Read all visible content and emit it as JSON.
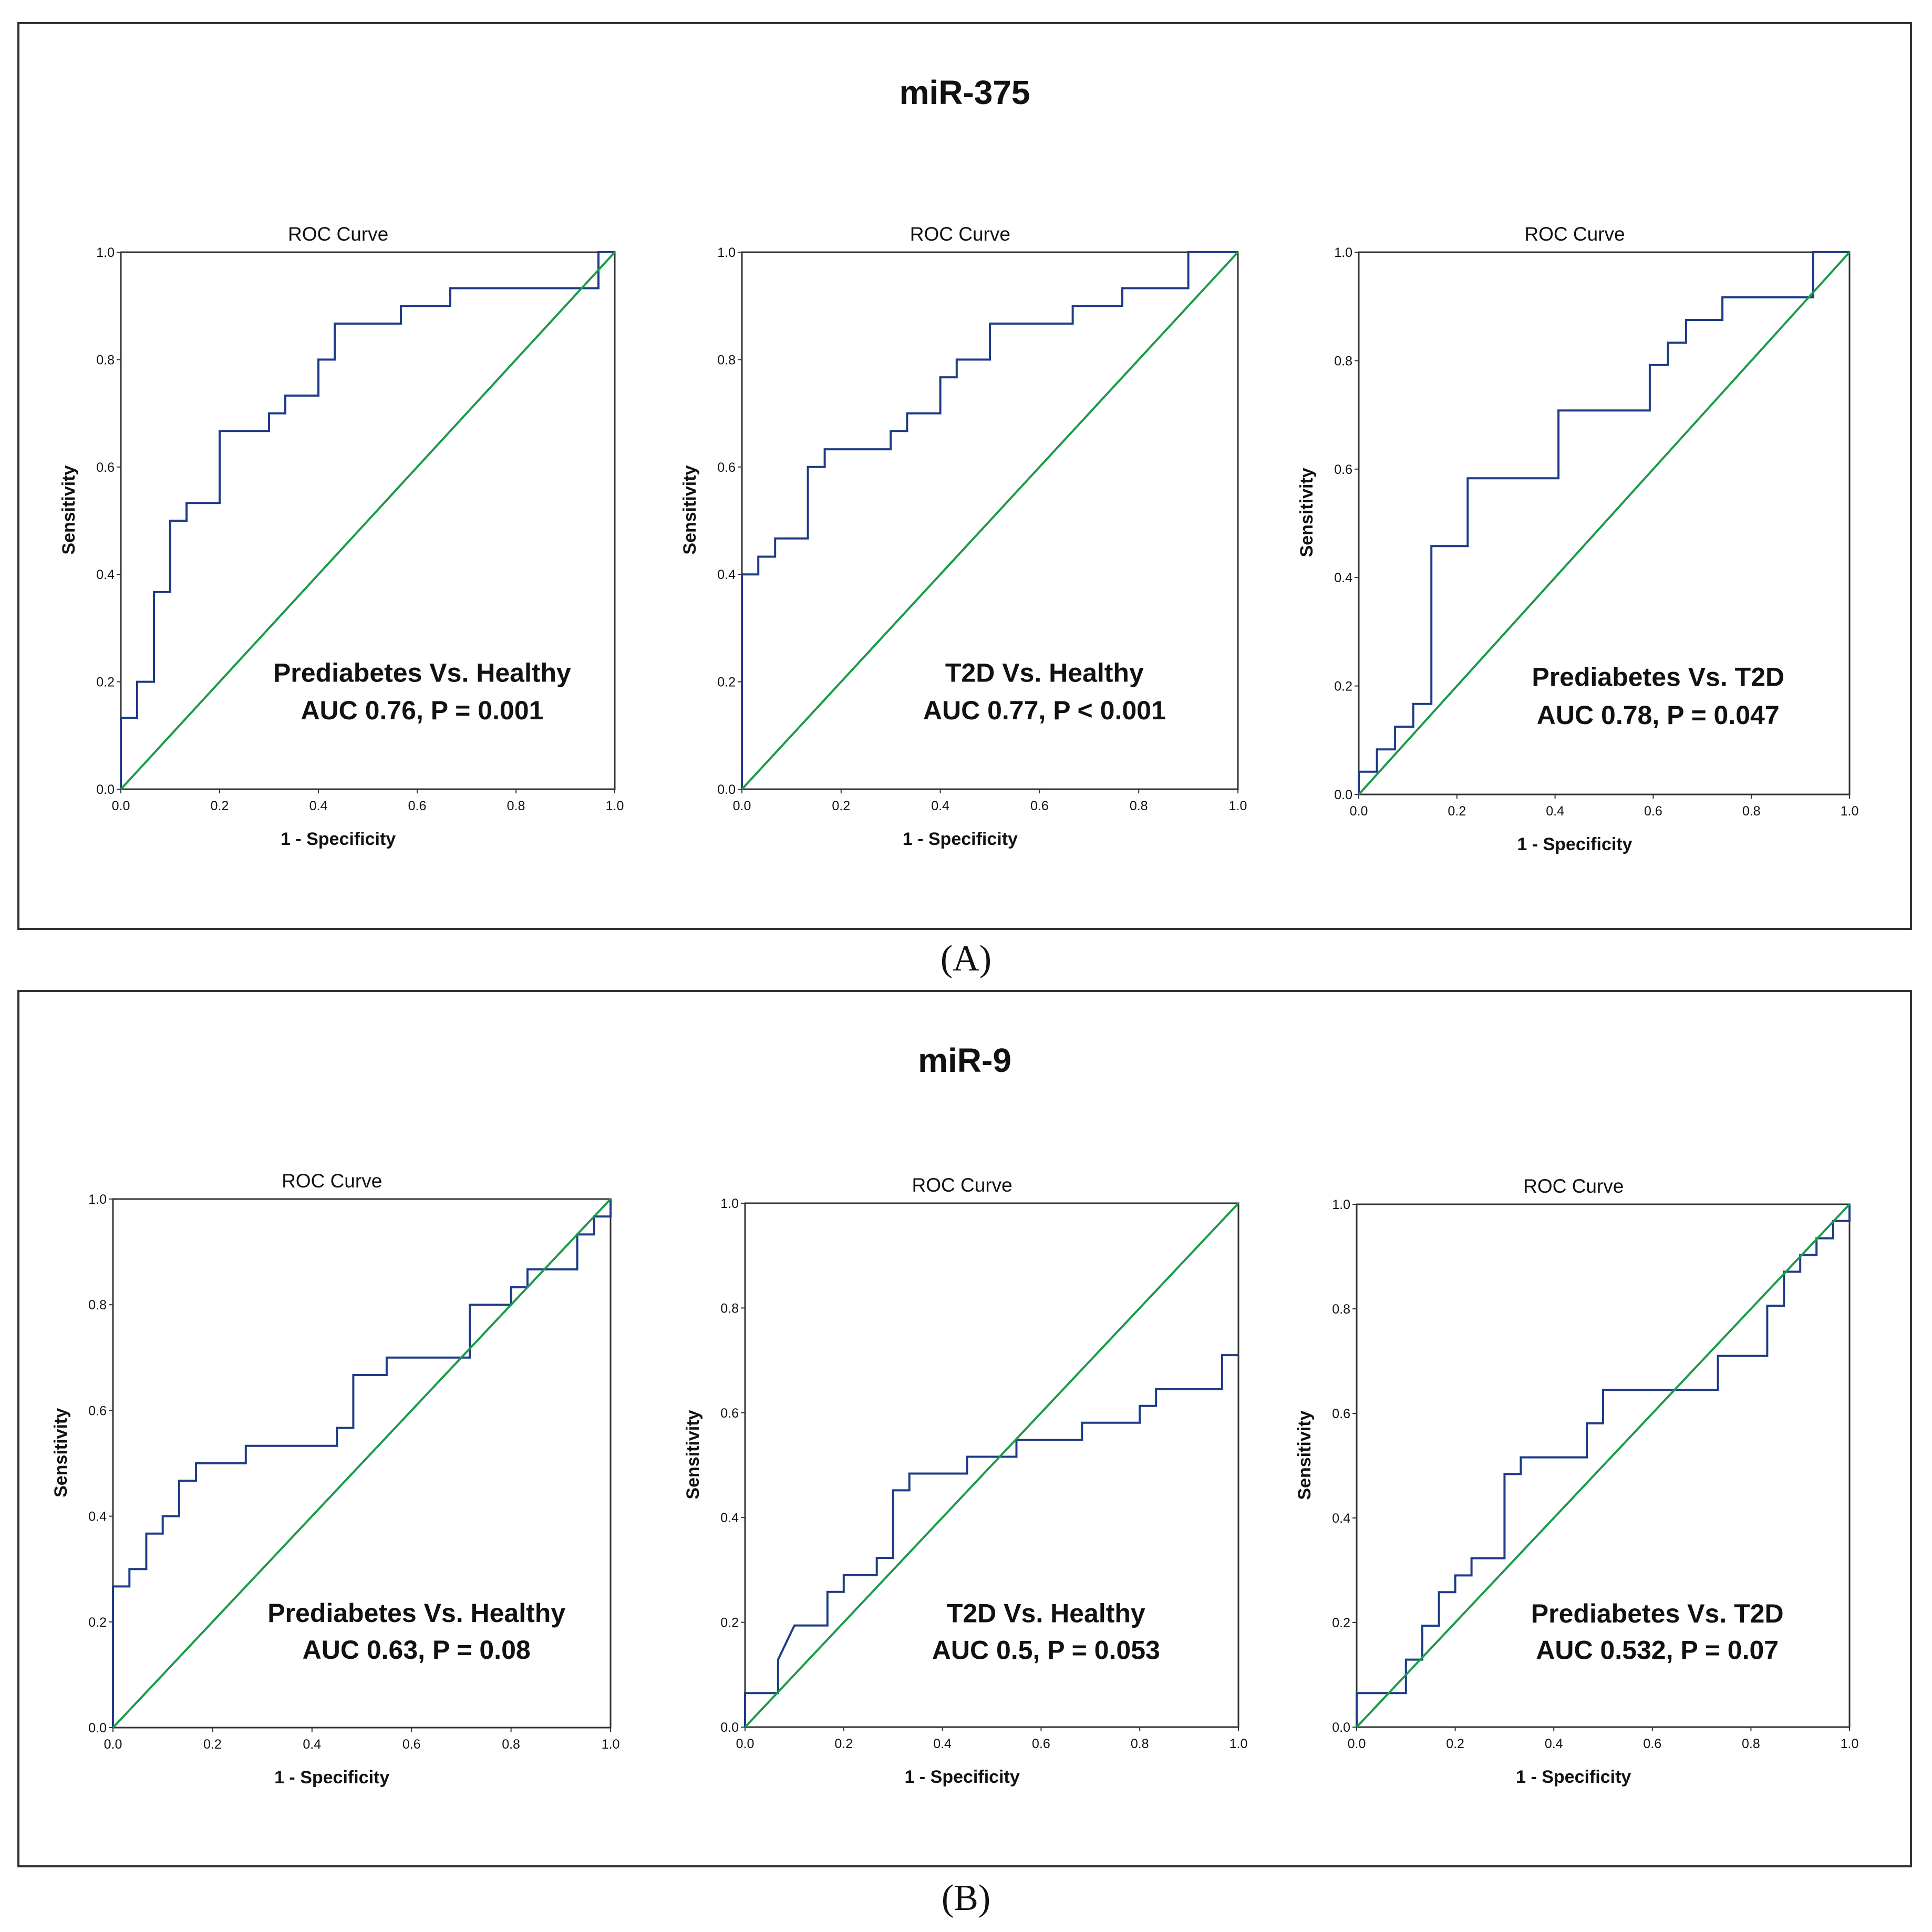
{
  "panels": [
    {
      "id": "A",
      "title": "miR-375",
      "letter": "(A)"
    },
    {
      "id": "B",
      "title": "miR-9",
      "letter": "(B)"
    }
  ],
  "colors": {
    "roc": "#1f3c88",
    "reference": "#1a9a4a",
    "frame": "#333333"
  },
  "chart_data": [
    {
      "type": "line",
      "panel": "A",
      "chart_title": "ROC Curve",
      "xlabel": "1 - Specificity",
      "ylabel": "Sensitivity",
      "xlim": [
        0,
        1
      ],
      "ylim": [
        0,
        1
      ],
      "xticks": [
        "0.0",
        "0.2",
        "0.4",
        "0.6",
        "0.8",
        "1.0"
      ],
      "yticks": [
        "0.0",
        "0.2",
        "0.4",
        "0.6",
        "0.8",
        "1.0"
      ],
      "annotation": [
        "Prediabetes Vs. Healthy",
        "AUC 0.76, P = 0.001"
      ],
      "series": [
        {
          "name": "ROC",
          "points": [
            [
              0,
              0
            ],
            [
              0,
              0.133
            ],
            [
              0.033,
              0.133
            ],
            [
              0.033,
              0.2
            ],
            [
              0.067,
              0.2
            ],
            [
              0.067,
              0.367
            ],
            [
              0.1,
              0.367
            ],
            [
              0.1,
              0.5
            ],
            [
              0.133,
              0.5
            ],
            [
              0.133,
              0.533
            ],
            [
              0.2,
              0.533
            ],
            [
              0.2,
              0.667
            ],
            [
              0.3,
              0.667
            ],
            [
              0.3,
              0.7
            ],
            [
              0.333,
              0.7
            ],
            [
              0.333,
              0.733
            ],
            [
              0.4,
              0.733
            ],
            [
              0.4,
              0.8
            ],
            [
              0.433,
              0.8
            ],
            [
              0.433,
              0.867
            ],
            [
              0.567,
              0.867
            ],
            [
              0.567,
              0.9
            ],
            [
              0.667,
              0.9
            ],
            [
              0.667,
              0.933
            ],
            [
              0.967,
              0.933
            ],
            [
              0.967,
              1.0
            ],
            [
              1.0,
              1.0
            ]
          ]
        },
        {
          "name": "Reference",
          "points": [
            [
              0,
              0
            ],
            [
              1,
              1
            ]
          ]
        }
      ]
    },
    {
      "type": "line",
      "panel": "A",
      "chart_title": "ROC Curve",
      "xlabel": "1 - Specificity",
      "ylabel": "Sensitivity",
      "xlim": [
        0,
        1
      ],
      "ylim": [
        0,
        1
      ],
      "xticks": [
        "0.0",
        "0.2",
        "0.4",
        "0.6",
        "0.8",
        "1.0"
      ],
      "yticks": [
        "0.0",
        "0.2",
        "0.4",
        "0.6",
        "0.8",
        "1.0"
      ],
      "annotation": [
        "T2D Vs. Healthy",
        "AUC 0.77, P < 0.001"
      ],
      "series": [
        {
          "name": "ROC",
          "points": [
            [
              0,
              0
            ],
            [
              0,
              0.4
            ],
            [
              0.033,
              0.4
            ],
            [
              0.033,
              0.433
            ],
            [
              0.067,
              0.433
            ],
            [
              0.067,
              0.467
            ],
            [
              0.133,
              0.467
            ],
            [
              0.133,
              0.6
            ],
            [
              0.167,
              0.6
            ],
            [
              0.167,
              0.633
            ],
            [
              0.3,
              0.633
            ],
            [
              0.3,
              0.667
            ],
            [
              0.333,
              0.667
            ],
            [
              0.333,
              0.7
            ],
            [
              0.4,
              0.7
            ],
            [
              0.4,
              0.767
            ],
            [
              0.433,
              0.767
            ],
            [
              0.433,
              0.8
            ],
            [
              0.5,
              0.8
            ],
            [
              0.5,
              0.867
            ],
            [
              0.667,
              0.867
            ],
            [
              0.667,
              0.9
            ],
            [
              0.767,
              0.9
            ],
            [
              0.767,
              0.933
            ],
            [
              0.9,
              0.933
            ],
            [
              0.9,
              1.0
            ],
            [
              1.0,
              1.0
            ]
          ]
        },
        {
          "name": "Reference",
          "points": [
            [
              0,
              0
            ],
            [
              1,
              1
            ]
          ]
        }
      ]
    },
    {
      "type": "line",
      "panel": "A",
      "chart_title": "ROC Curve",
      "xlabel": "1 - Specificity",
      "ylabel": "Sensitivity",
      "xlim": [
        0,
        1
      ],
      "ylim": [
        0,
        1
      ],
      "xticks": [
        "0.0",
        "0.2",
        "0.4",
        "0.6",
        "0.8",
        "1.0"
      ],
      "yticks": [
        "0.0",
        "0.2",
        "0.4",
        "0.6",
        "0.8",
        "1.0"
      ],
      "annotation": [
        "Prediabetes Vs. T2D",
        "AUC 0.78, P = 0.047"
      ],
      "series": [
        {
          "name": "ROC",
          "points": [
            [
              0,
              0
            ],
            [
              0,
              0.042
            ],
            [
              0.037,
              0.042
            ],
            [
              0.037,
              0.083
            ],
            [
              0.074,
              0.083
            ],
            [
              0.074,
              0.125
            ],
            [
              0.111,
              0.125
            ],
            [
              0.111,
              0.167
            ],
            [
              0.148,
              0.167
            ],
            [
              0.148,
              0.458
            ],
            [
              0.222,
              0.458
            ],
            [
              0.222,
              0.583
            ],
            [
              0.407,
              0.583
            ],
            [
              0.407,
              0.708
            ],
            [
              0.593,
              0.708
            ],
            [
              0.593,
              0.792
            ],
            [
              0.63,
              0.792
            ],
            [
              0.63,
              0.833
            ],
            [
              0.667,
              0.833
            ],
            [
              0.667,
              0.875
            ],
            [
              0.741,
              0.875
            ],
            [
              0.741,
              0.917
            ],
            [
              0.926,
              0.917
            ],
            [
              0.926,
              1.0
            ],
            [
              1.0,
              1.0
            ]
          ]
        },
        {
          "name": "Reference",
          "points": [
            [
              0,
              0
            ],
            [
              1,
              1
            ]
          ]
        }
      ]
    },
    {
      "type": "line",
      "panel": "B",
      "chart_title": "ROC Curve",
      "xlabel": "1 - Specificity",
      "ylabel": "Sensitivity",
      "xlim": [
        0,
        1
      ],
      "ylim": [
        0,
        1
      ],
      "xticks": [
        "0.0",
        "0.2",
        "0.4",
        "0.6",
        "0.8",
        "1.0"
      ],
      "yticks": [
        "0.0",
        "0.2",
        "0.4",
        "0.6",
        "0.8",
        "1.0"
      ],
      "annotation": [
        "Prediabetes Vs. Healthy",
        "AUC 0.63, P = 0.08"
      ],
      "series": [
        {
          "name": "ROC",
          "points": [
            [
              0,
              0
            ],
            [
              0,
              0.267
            ],
            [
              0.033,
              0.267
            ],
            [
              0.033,
              0.3
            ],
            [
              0.067,
              0.3
            ],
            [
              0.067,
              0.367
            ],
            [
              0.1,
              0.367
            ],
            [
              0.1,
              0.4
            ],
            [
              0.133,
              0.4
            ],
            [
              0.133,
              0.467
            ],
            [
              0.167,
              0.467
            ],
            [
              0.167,
              0.5
            ],
            [
              0.267,
              0.5
            ],
            [
              0.267,
              0.533
            ],
            [
              0.45,
              0.533
            ],
            [
              0.45,
              0.567
            ],
            [
              0.483,
              0.567
            ],
            [
              0.483,
              0.667
            ],
            [
              0.55,
              0.667
            ],
            [
              0.55,
              0.7
            ],
            [
              0.717,
              0.7
            ],
            [
              0.717,
              0.8
            ],
            [
              0.8,
              0.8
            ],
            [
              0.8,
              0.833
            ],
            [
              0.833,
              0.833
            ],
            [
              0.833,
              0.867
            ],
            [
              0.933,
              0.867
            ],
            [
              0.933,
              0.933
            ],
            [
              0.967,
              0.933
            ],
            [
              0.967,
              0.967
            ],
            [
              1.0,
              0.967
            ],
            [
              1.0,
              1.0
            ]
          ]
        },
        {
          "name": "Reference",
          "points": [
            [
              0,
              0
            ],
            [
              1,
              1
            ]
          ]
        }
      ]
    },
    {
      "type": "line",
      "panel": "B",
      "chart_title": "ROC Curve",
      "xlabel": "1 - Specificity",
      "ylabel": "Sensitivity",
      "xlim": [
        0,
        1
      ],
      "ylim": [
        0,
        1
      ],
      "xticks": [
        "0.0",
        "0.2",
        "0.4",
        "0.6",
        "0.8",
        "1.0"
      ],
      "yticks": [
        "0.0",
        "0.2",
        "0.4",
        "0.6",
        "0.8",
        "1.0"
      ],
      "annotation": [
        "T2D Vs. Healthy",
        "AUC 0.5, P = 0.053"
      ],
      "series": [
        {
          "name": "ROC",
          "points": [
            [
              0,
              0
            ],
            [
              0,
              0.065
            ],
            [
              0.067,
              0.065
            ],
            [
              0.067,
              0.129
            ],
            [
              0.1,
              0.194
            ],
            [
              0.167,
              0.194
            ],
            [
              0.167,
              0.258
            ],
            [
              0.2,
              0.258
            ],
            [
              0.2,
              0.29
            ],
            [
              0.267,
              0.29
            ],
            [
              0.267,
              0.323
            ],
            [
              0.3,
              0.323
            ],
            [
              0.3,
              0.452
            ],
            [
              0.333,
              0.452
            ],
            [
              0.333,
              0.484
            ],
            [
              0.45,
              0.484
            ],
            [
              0.45,
              0.516
            ],
            [
              0.55,
              0.516
            ],
            [
              0.55,
              0.548
            ],
            [
              0.683,
              0.548
            ],
            [
              0.683,
              0.581
            ],
            [
              0.8,
              0.581
            ],
            [
              0.8,
              0.613
            ],
            [
              0.833,
              0.613
            ],
            [
              0.833,
              0.645
            ],
            [
              0.967,
              0.645
            ],
            [
              0.967,
              0.71
            ],
            [
              1.0,
              0.71
            ]
          ]
        },
        {
          "name": "Reference",
          "points": [
            [
              0,
              0
            ],
            [
              1,
              1
            ]
          ]
        }
      ]
    },
    {
      "type": "line",
      "panel": "B",
      "chart_title": "ROC Curve",
      "xlabel": "1 - Specificity",
      "ylabel": "Sensitivity",
      "xlim": [
        0,
        1
      ],
      "ylim": [
        0,
        1
      ],
      "xticks": [
        "0.0",
        "0.2",
        "0.4",
        "0.6",
        "0.8",
        "1.0"
      ],
      "yticks": [
        "0.0",
        "0.2",
        "0.4",
        "0.6",
        "0.8",
        "1.0"
      ],
      "annotation": [
        "Prediabetes Vs. T2D",
        "AUC 0.532, P = 0.07"
      ],
      "series": [
        {
          "name": "ROC",
          "points": [
            [
              0,
              0
            ],
            [
              0,
              0.065
            ],
            [
              0.1,
              0.065
            ],
            [
              0.1,
              0.129
            ],
            [
              0.133,
              0.129
            ],
            [
              0.133,
              0.194
            ],
            [
              0.167,
              0.194
            ],
            [
              0.167,
              0.258
            ],
            [
              0.2,
              0.258
            ],
            [
              0.2,
              0.29
            ],
            [
              0.233,
              0.29
            ],
            [
              0.233,
              0.323
            ],
            [
              0.3,
              0.323
            ],
            [
              0.3,
              0.484
            ],
            [
              0.333,
              0.484
            ],
            [
              0.333,
              0.516
            ],
            [
              0.467,
              0.516
            ],
            [
              0.467,
              0.581
            ],
            [
              0.5,
              0.581
            ],
            [
              0.5,
              0.645
            ],
            [
              0.733,
              0.645
            ],
            [
              0.733,
              0.71
            ],
            [
              0.833,
              0.71
            ],
            [
              0.833,
              0.806
            ],
            [
              0.867,
              0.806
            ],
            [
              0.867,
              0.871
            ],
            [
              0.9,
              0.871
            ],
            [
              0.9,
              0.903
            ],
            [
              0.933,
              0.903
            ],
            [
              0.933,
              0.935
            ],
            [
              0.967,
              0.935
            ],
            [
              0.967,
              0.968
            ],
            [
              1.0,
              0.968
            ],
            [
              1.0,
              1.0
            ]
          ]
        },
        {
          "name": "Reference",
          "points": [
            [
              0,
              0
            ],
            [
              1,
              1
            ]
          ]
        }
      ]
    }
  ]
}
